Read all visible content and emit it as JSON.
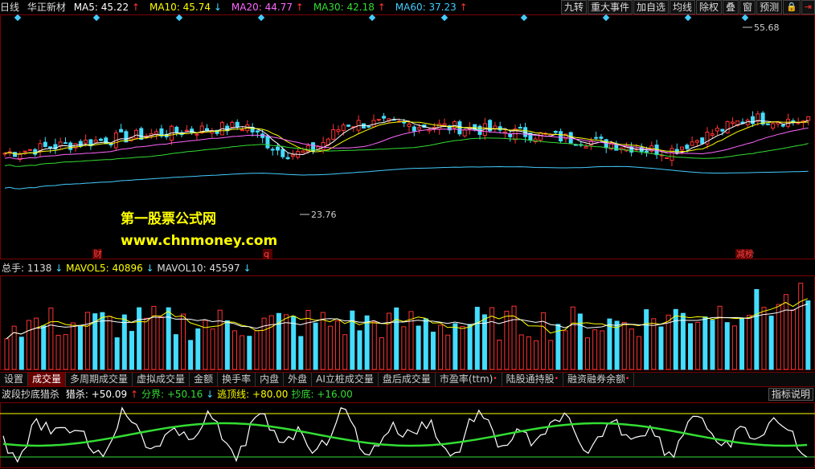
{
  "header": {
    "period": "日线",
    "stock": "华正新材",
    "ma": [
      {
        "label": "MA5:",
        "value": "45.22",
        "dir": "↑",
        "color": "#ffffff"
      },
      {
        "label": "MA10:",
        "value": "45.74",
        "dir": "↓",
        "color": "#ffff00"
      },
      {
        "label": "MA20:",
        "value": "44.77",
        "dir": "↑",
        "color": "#ff66ff"
      },
      {
        "label": "MA30:",
        "value": "42.18",
        "dir": "↑",
        "color": "#33dd33"
      },
      {
        "label": "MA60:",
        "value": "37.23",
        "dir": "↑",
        "color": "#44ccff"
      }
    ]
  },
  "toolbar": [
    "九转",
    "重大事件",
    "加自选",
    "均线",
    "除权",
    "叠",
    "窗",
    "预测"
  ],
  "price_chart": {
    "high_label": "55.68",
    "low_label": "23.76",
    "markers": [
      "财",
      "q",
      "减榜"
    ]
  },
  "watermark": {
    "line1": "第一股票公式网",
    "line2": "www.chnmoney.com"
  },
  "volume_header": {
    "total_label": "总手:",
    "total_value": "1138",
    "mavol5_label": "MAVOL5:",
    "mavol5_value": "40896",
    "mavol10_label": "MAVOL10:",
    "mavol10_value": "45597"
  },
  "tabs": [
    {
      "label": "设置",
      "active": false
    },
    {
      "label": "成交量",
      "active": true
    },
    {
      "label": "多周期成交量",
      "active": false
    },
    {
      "label": "虚拟成交量",
      "active": false
    },
    {
      "label": "金额",
      "active": false
    },
    {
      "label": "换手率",
      "active": false
    },
    {
      "label": "内盘",
      "active": false
    },
    {
      "label": "外盘",
      "active": false
    },
    {
      "label": "AI立桩成交量",
      "active": false
    },
    {
      "label": "盘后成交量",
      "active": false
    },
    {
      "label": "市盈率(ttm)",
      "active": false,
      "dot": true
    },
    {
      "label": "陆股通持股",
      "active": false,
      "dot": true
    },
    {
      "label": "融资融券余额",
      "active": false,
      "dot": true
    }
  ],
  "indicator": {
    "name": "波段抄底猎杀",
    "items": [
      {
        "label": "猎杀:",
        "value": "+50.09",
        "dir": "↑",
        "color": "#ffffff"
      },
      {
        "label": "分界:",
        "value": "+50.16",
        "dir": "↓",
        "color": "#33dd33"
      },
      {
        "label": "逃顶线:",
        "value": "+80.00",
        "dir": "",
        "color": "#ffff00"
      },
      {
        "label": "抄底:",
        "value": "+16.00",
        "dir": "",
        "color": "#33dd33"
      }
    ],
    "help": "指标说明"
  },
  "colors": {
    "up": "#ff3333",
    "down": "#44ddff",
    "ma5": "#ffffff",
    "ma10": "#ffff00",
    "ma20": "#ff66ff",
    "ma30": "#33dd33",
    "ma60": "#44ccff"
  }
}
